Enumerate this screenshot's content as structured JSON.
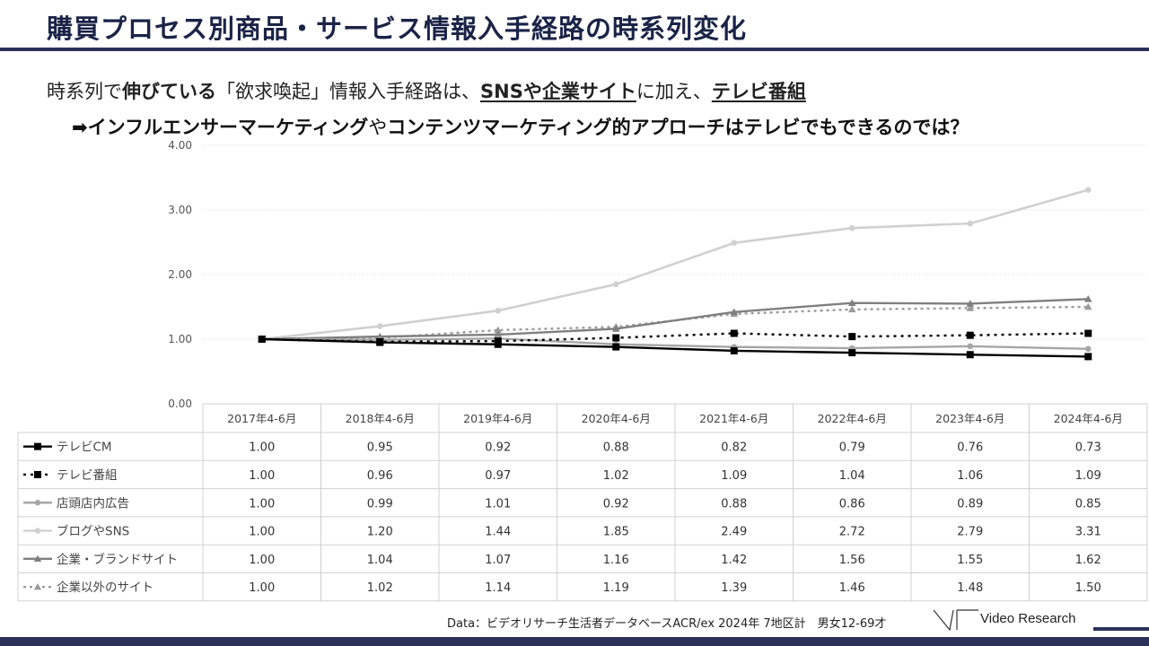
{
  "header": {
    "title": "購買プロセス別商品・サービス情報入手経路の時系列変化"
  },
  "subtitle": {
    "p1": "時系列で",
    "p2": "伸びている",
    "p3": "「欲求喚起」情報入手経路は、",
    "p4": "SNSや企業サイト",
    "p5": "に加え、",
    "p6": "テレビ番組",
    "line2_a": "➡インフルエンサーマーケティング",
    "line2_b": "や",
    "line2_c": "コンテンツマーケティング的アプローチはテレビでもできるのでは？"
  },
  "chart_data": {
    "type": "line",
    "categories": [
      "2017年4-6月",
      "2018年4-6月",
      "2019年4-6月",
      "2020年4-6月",
      "2021年4-6月",
      "2022年4-6月",
      "2023年4-6月",
      "2024年4-6月"
    ],
    "ylim": [
      0,
      4
    ],
    "yticks": [
      "0.00",
      "1.00",
      "2.00",
      "3.00",
      "4.00"
    ],
    "grid": true,
    "series": [
      {
        "name": "テレビCM",
        "values": [
          1.0,
          0.95,
          0.92,
          0.88,
          0.82,
          0.79,
          0.76,
          0.73
        ],
        "labels": [
          "1.00",
          "0.95",
          "0.92",
          "0.88",
          "0.82",
          "0.79",
          "0.76",
          "0.73"
        ],
        "color": "#000000",
        "dash": "",
        "marker": "square"
      },
      {
        "name": "テレビ番組",
        "values": [
          1.0,
          0.96,
          0.97,
          1.02,
          1.09,
          1.04,
          1.06,
          1.09
        ],
        "labels": [
          "1.00",
          "0.96",
          "0.97",
          "1.02",
          "1.09",
          "1.04",
          "1.06",
          "1.09"
        ],
        "color": "#000000",
        "dash": "3,5",
        "marker": "square"
      },
      {
        "name": "店頭店内広告",
        "values": [
          1.0,
          0.99,
          1.01,
          0.92,
          0.88,
          0.86,
          0.89,
          0.85
        ],
        "labels": [
          "1.00",
          "0.99",
          "1.01",
          "0.92",
          "0.88",
          "0.86",
          "0.89",
          "0.85"
        ],
        "color": "#a6a6a6",
        "dash": "",
        "marker": "circle"
      },
      {
        "name": "ブログやSNS",
        "values": [
          1.0,
          1.2,
          1.44,
          1.85,
          2.49,
          2.72,
          2.79,
          3.31
        ],
        "labels": [
          "1.00",
          "1.20",
          "1.44",
          "1.85",
          "2.49",
          "2.72",
          "2.79",
          "3.31"
        ],
        "color": "#d0d0d0",
        "dash": "",
        "marker": "circle"
      },
      {
        "name": "企業・ブランドサイト",
        "values": [
          1.0,
          1.04,
          1.07,
          1.16,
          1.42,
          1.56,
          1.55,
          1.62
        ],
        "labels": [
          "1.00",
          "1.04",
          "1.07",
          "1.16",
          "1.42",
          "1.56",
          "1.55",
          "1.62"
        ],
        "color": "#7f7f7f",
        "dash": "",
        "marker": "triangle"
      },
      {
        "name": "企業以外のサイト",
        "values": [
          1.0,
          1.02,
          1.14,
          1.19,
          1.39,
          1.46,
          1.48,
          1.5
        ],
        "labels": [
          "1.00",
          "1.02",
          "1.14",
          "1.19",
          "1.39",
          "1.46",
          "1.48",
          "1.50"
        ],
        "color": "#9a9a9a",
        "dash": "3,4",
        "marker": "triangle"
      }
    ]
  },
  "footer": {
    "source": "Data：ビデオリサーチ生活者データベースACR/ex 2024年 7地区計　男女12-69才",
    "brand": "Video Research"
  }
}
